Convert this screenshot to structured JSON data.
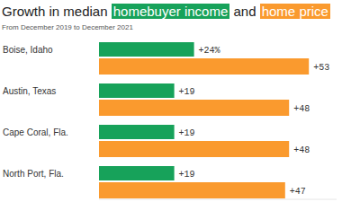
{
  "chart_data": {
    "type": "bar",
    "orientation": "horizontal",
    "title": "Growth in median homebuyer income and home price",
    "subtitle": "From December 2019 to December 2021",
    "categories": [
      "Boise, Idaho",
      "Austin, Texas",
      "Cape Coral, Fla.",
      "North Port, Fla."
    ],
    "series": [
      {
        "name": "homebuyer income",
        "color": "#17a25a",
        "values": [
          24,
          19,
          19,
          19
        ],
        "value_labels": [
          "+24%",
          "+19",
          "+19",
          "+19"
        ]
      },
      {
        "name": "home price",
        "color": "#fa9a2e",
        "values": [
          53,
          48,
          48,
          47
        ],
        "value_labels": [
          "+53",
          "+48",
          "+48",
          "+47"
        ]
      }
    ],
    "ylim": [
      0,
      60
    ],
    "data_labels": true,
    "tick_labels": "x",
    "grid": false
  }
}
